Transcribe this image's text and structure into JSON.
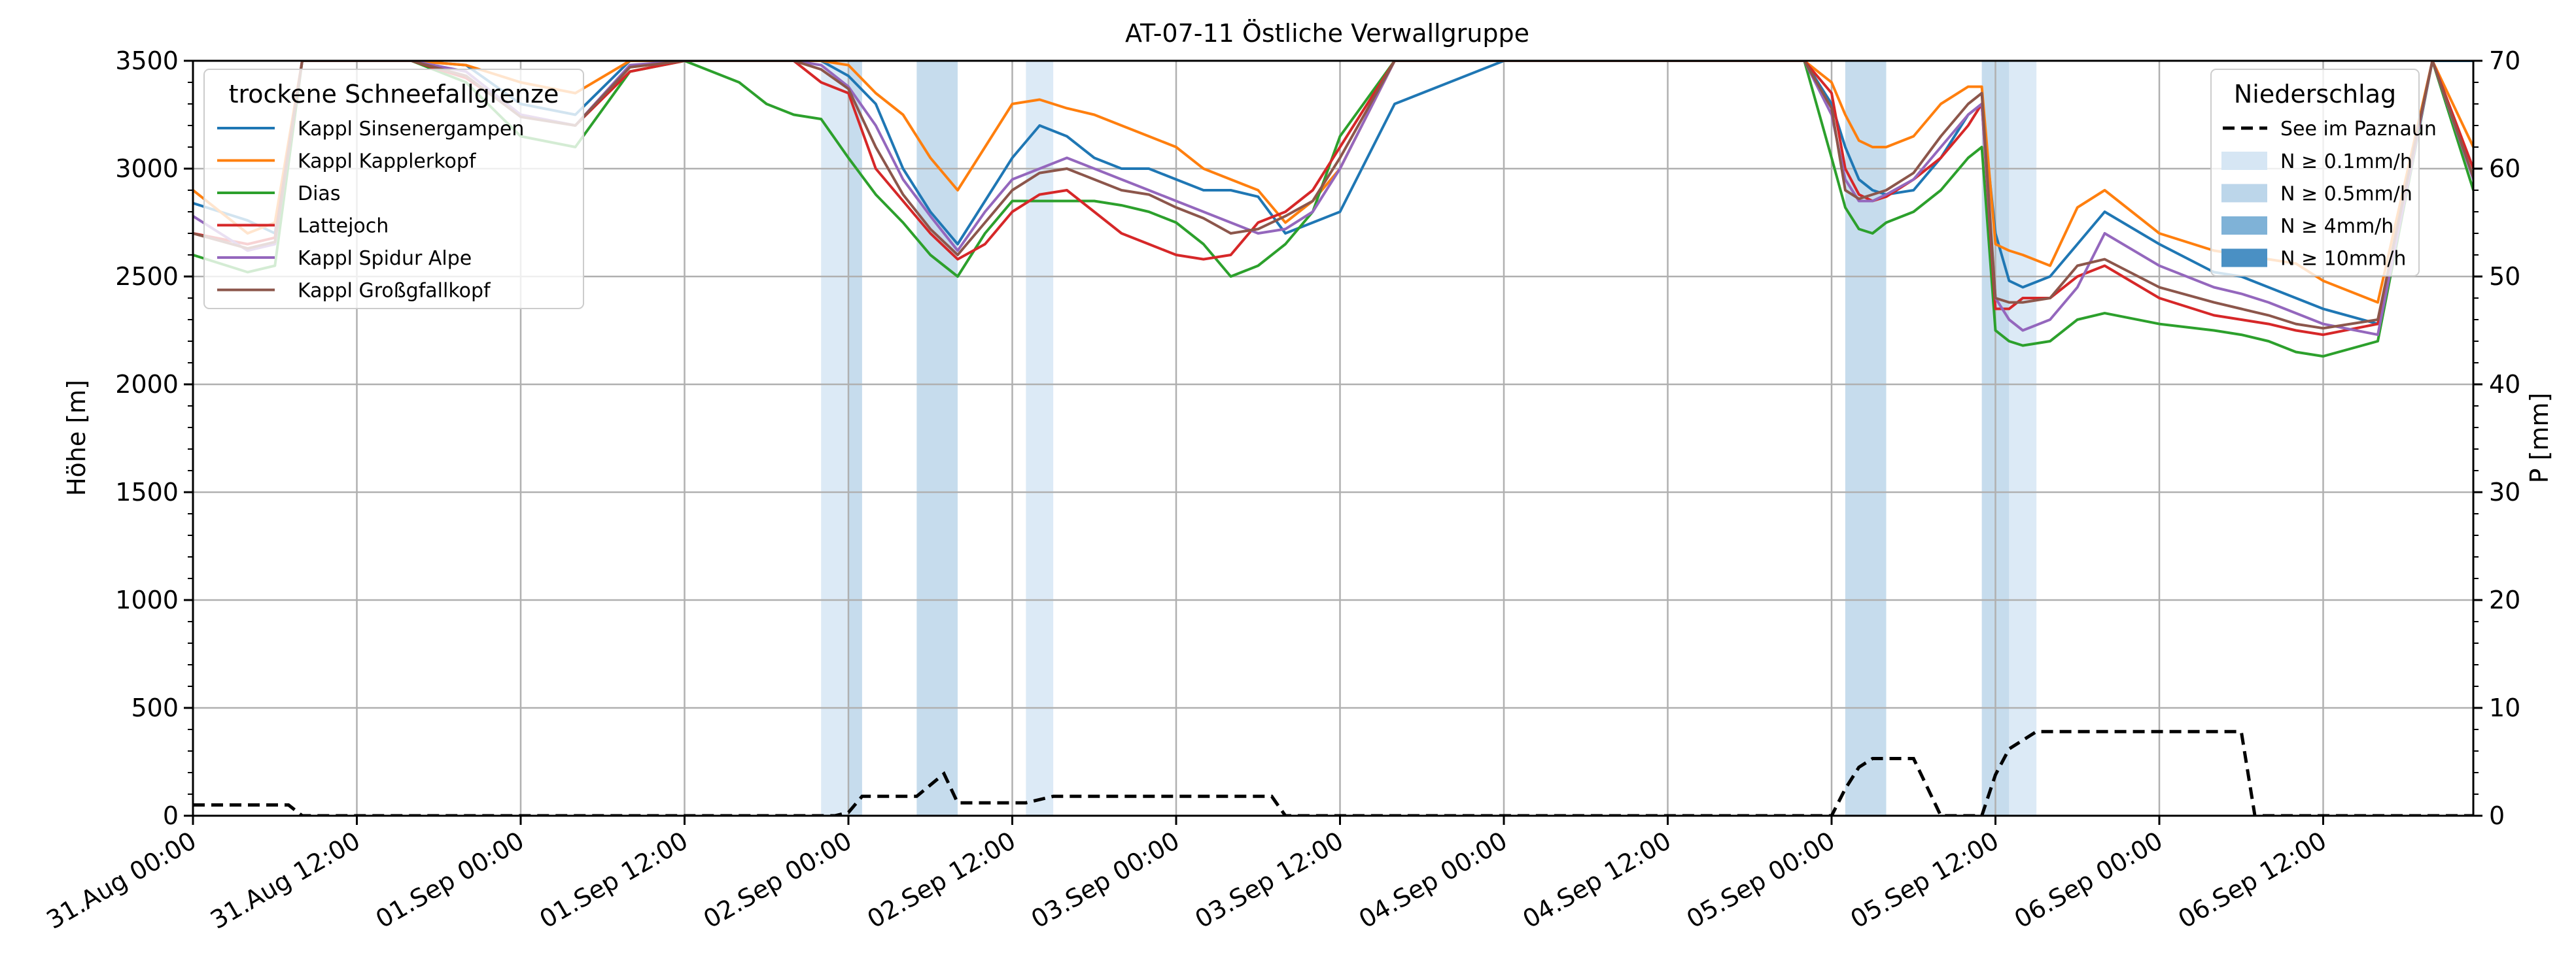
{
  "chart_data": {
    "type": "line",
    "title": "AT-07-11 Östliche Verwallgruppe",
    "ylabel": "Höhe [m]",
    "ylabel_right": "P [mm]",
    "ylim": [
      0,
      3500
    ],
    "ylim_right": [
      0,
      70
    ],
    "y_ticks": [
      0,
      500,
      1000,
      1500,
      2000,
      2500,
      3000,
      3500
    ],
    "y_ticks_right": [
      0,
      10,
      20,
      30,
      40,
      50,
      60,
      70
    ],
    "x_range_hours": [
      0,
      167
    ],
    "x_tick_labels": [
      "31.Aug 00:00",
      "31.Aug 12:00",
      "01.Sep 00:00",
      "01.Sep 12:00",
      "02.Sep 00:00",
      "02.Sep 12:00",
      "03.Sep 00:00",
      "03.Sep 12:00",
      "04.Sep 00:00",
      "04.Sep 12:00",
      "05.Sep 00:00",
      "05.Sep 12:00",
      "06.Sep 00:00",
      "06.Sep 12:00"
    ],
    "grid": true,
    "legend_left": {
      "title": "trockene Schneefallgrenze",
      "placement": "top-left"
    },
    "legend_right": {
      "title": "Niederschlag",
      "placement": "top-right",
      "line_label": "See im Paznaun",
      "band_labels": [
        "N ≥ 0.1mm/h",
        "N ≥ 0.5mm/h",
        "N ≥ 4mm/h",
        "N ≥ 10mm/h"
      ],
      "band_colors": [
        "#d6e6f4",
        "#bcd6ea",
        "#7fb2d7",
        "#4a90c4"
      ]
    },
    "precip_bands": [
      {
        "start_h": 46,
        "end_h": 48,
        "level": 0
      },
      {
        "start_h": 48,
        "end_h": 49,
        "level": 1
      },
      {
        "start_h": 53,
        "end_h": 56,
        "level": 1
      },
      {
        "start_h": 61,
        "end_h": 63,
        "level": 0
      },
      {
        "start_h": 121,
        "end_h": 124,
        "level": 1
      },
      {
        "start_h": 131,
        "end_h": 133,
        "level": 1
      },
      {
        "start_h": 133,
        "end_h": 135,
        "level": 0
      }
    ],
    "precip_series": {
      "name": "See im Paznaun",
      "color": "#000000",
      "hours": [
        0,
        7,
        8,
        47,
        48,
        49,
        53,
        55,
        56,
        61,
        63,
        66,
        72,
        79,
        80,
        120,
        121,
        122,
        123,
        126,
        128,
        131,
        132,
        133,
        135,
        150,
        151,
        167
      ],
      "values": [
        1,
        1,
        0,
        0,
        0.3,
        1.8,
        1.8,
        3.9,
        1.2,
        1.2,
        1.8,
        1.8,
        1.8,
        1.8,
        0,
        0,
        2.5,
        4.5,
        5.3,
        5.3,
        0,
        0,
        3.8,
        6.2,
        7.8,
        7.8,
        0,
        0
      ]
    },
    "hours": [
      0,
      4,
      6,
      8,
      10,
      12,
      16,
      20,
      24,
      28,
      32,
      36,
      40,
      42,
      44,
      46,
      48,
      50,
      52,
      54,
      56,
      58,
      60,
      62,
      64,
      66,
      68,
      70,
      72,
      74,
      76,
      78,
      80,
      82,
      84,
      88,
      96,
      104,
      112,
      118,
      120,
      121,
      122,
      123,
      124,
      126,
      128,
      130,
      131,
      132,
      133,
      134,
      136,
      138,
      140,
      144,
      148,
      150,
      152,
      154,
      156,
      160,
      164,
      167
    ],
    "series": [
      {
        "name": "Kappl Sinsenergampen",
        "color": "#1f77b4",
        "values": [
          2840,
          2760,
          2700,
          3500,
          3500,
          3500,
          3500,
          3480,
          3300,
          3250,
          3500,
          3500,
          3500,
          3500,
          3500,
          3500,
          3430,
          3300,
          3000,
          2800,
          2650,
          2850,
          3050,
          3200,
          3150,
          3050,
          3000,
          3000,
          2950,
          2900,
          2900,
          2870,
          2700,
          2750,
          2800,
          3300,
          3500,
          3500,
          3500,
          3500,
          3300,
          3100,
          2950,
          2900,
          2880,
          2900,
          3050,
          3250,
          3300,
          2700,
          2480,
          2450,
          2500,
          2650,
          2800,
          2650,
          2520,
          2500,
          2450,
          2400,
          2350,
          2280,
          3500,
          3500
        ]
      },
      {
        "name": "Kappl Kapplerkopf",
        "color": "#ff7f0e",
        "values": [
          2900,
          2700,
          2750,
          3500,
          3500,
          3500,
          3500,
          3480,
          3400,
          3350,
          3500,
          3500,
          3500,
          3500,
          3500,
          3500,
          3480,
          3350,
          3250,
          3050,
          2900,
          3100,
          3300,
          3320,
          3280,
          3250,
          3200,
          3150,
          3100,
          3000,
          2950,
          2900,
          2750,
          2850,
          3000,
          3500,
          3500,
          3500,
          3500,
          3500,
          3400,
          3250,
          3130,
          3100,
          3100,
          3150,
          3300,
          3380,
          3380,
          2650,
          2620,
          2600,
          2550,
          2820,
          2900,
          2700,
          2620,
          2600,
          2580,
          2560,
          2480,
          2380,
          3500,
          3100
        ]
      },
      {
        "name": "Dias",
        "color": "#2ca02c",
        "values": [
          2600,
          2520,
          2550,
          3500,
          3500,
          3500,
          3500,
          3400,
          3150,
          3100,
          3450,
          3500,
          3400,
          3300,
          3250,
          3230,
          3050,
          2880,
          2750,
          2600,
          2500,
          2700,
          2850,
          2850,
          2850,
          2850,
          2830,
          2800,
          2750,
          2650,
          2500,
          2550,
          2650,
          2800,
          3150,
          3500,
          3500,
          3500,
          3500,
          3500,
          3050,
          2820,
          2720,
          2700,
          2750,
          2800,
          2900,
          3050,
          3100,
          2250,
          2200,
          2180,
          2200,
          2300,
          2330,
          2280,
          2250,
          2230,
          2200,
          2150,
          2130,
          2200,
          3500,
          2900
        ]
      },
      {
        "name": "Lattejoch",
        "color": "#d62728",
        "values": [
          2700,
          2650,
          2680,
          3500,
          3500,
          3500,
          3500,
          3420,
          3250,
          3200,
          3450,
          3500,
          3500,
          3500,
          3500,
          3400,
          3350,
          3000,
          2850,
          2700,
          2580,
          2650,
          2800,
          2880,
          2900,
          2800,
          2700,
          2650,
          2600,
          2580,
          2600,
          2750,
          2800,
          2900,
          3100,
          3500,
          3500,
          3500,
          3500,
          3500,
          3350,
          3000,
          2880,
          2850,
          2870,
          2950,
          3050,
          3200,
          3300,
          2350,
          2350,
          2400,
          2400,
          2500,
          2550,
          2400,
          2320,
          2300,
          2280,
          2250,
          2230,
          2280,
          3500,
          3000
        ]
      },
      {
        "name": "Kappl Spidur Alpe",
        "color": "#9467bd",
        "values": [
          2780,
          2620,
          2650,
          3500,
          3500,
          3500,
          3500,
          3450,
          3250,
          3200,
          3480,
          3500,
          3500,
          3500,
          3500,
          3480,
          3380,
          3200,
          2950,
          2780,
          2620,
          2800,
          2950,
          3000,
          3050,
          3000,
          2950,
          2900,
          2850,
          2800,
          2750,
          2700,
          2720,
          2800,
          3000,
          3500,
          3500,
          3500,
          3500,
          3500,
          3250,
          2950,
          2850,
          2850,
          2880,
          2950,
          3100,
          3250,
          3300,
          2400,
          2300,
          2250,
          2300,
          2450,
          2700,
          2550,
          2450,
          2420,
          2380,
          2330,
          2280,
          2230,
          3500,
          2950
        ]
      },
      {
        "name": "Kappl Großgfallkopf",
        "color": "#8c564b",
        "values": [
          2700,
          2630,
          2660,
          3500,
          3500,
          3500,
          3500,
          3430,
          3240,
          3200,
          3470,
          3500,
          3500,
          3500,
          3500,
          3460,
          3370,
          3100,
          2880,
          2720,
          2600,
          2750,
          2900,
          2980,
          3000,
          2950,
          2900,
          2880,
          2820,
          2770,
          2700,
          2720,
          2780,
          2850,
          3050,
          3500,
          3500,
          3500,
          3500,
          3500,
          3280,
          2900,
          2860,
          2880,
          2900,
          2980,
          3150,
          3300,
          3350,
          2400,
          2380,
          2380,
          2400,
          2550,
          2580,
          2450,
          2380,
          2350,
          2320,
          2280,
          2260,
          2300,
          3500,
          2960
        ]
      }
    ]
  }
}
